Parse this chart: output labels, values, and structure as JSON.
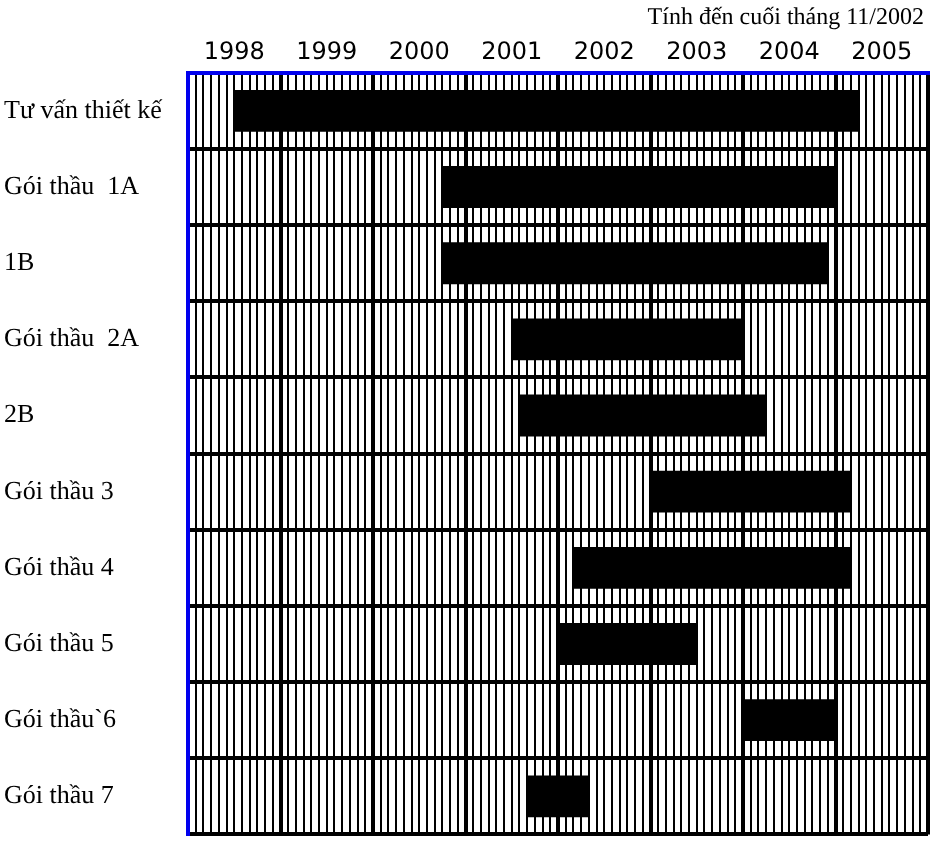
{
  "chart_data": {
    "type": "bar",
    "orientation": "horizontal",
    "annotations": [
      "Tính đến cuối tháng 11/2002"
    ],
    "categories": [
      "Tư vấn thiết kế",
      "Gói thầu  1A",
      "1B",
      "Gói thầu  2A",
      "2B",
      "Gói thầu 3",
      "Gói thầu 4",
      "Gói thầu 5",
      "Gói thầu`6",
      "Gói thầu 7"
    ],
    "base": [
      1998.5,
      2000.75,
      2000.75,
      2001.5,
      2001.58,
      2003,
      2002.17,
      2002,
      2004,
      2001.67
    ],
    "values": [
      6.75,
      4.25,
      4.17,
      2.5,
      2.67,
      2.17,
      3,
      1.5,
      1,
      0.67
    ],
    "color": "#000000",
    "xlim": [
      1998,
      2006
    ],
    "grid": true,
    "legend": false,
    "xticks": [
      {
        "value": 1998,
        "label": null
      },
      {
        "value": 1998.083,
        "label": null
      },
      {
        "value": 1998.167,
        "label": null
      },
      {
        "value": 1998.25,
        "label": null
      },
      {
        "value": 1998.333,
        "label": null
      },
      {
        "value": 1998.417,
        "label": null
      },
      {
        "value": 1998.5,
        "label": "1998"
      },
      {
        "value": 1998.583,
        "label": null
      },
      {
        "value": 1998.667,
        "label": null
      },
      {
        "value": 1998.75,
        "label": null
      },
      {
        "value": 1998.833,
        "label": null
      },
      {
        "value": 1998.917,
        "label": null
      },
      {
        "value": 1999,
        "label": null
      },
      {
        "value": 1999.083,
        "label": null
      },
      {
        "value": 1999.167,
        "label": null
      },
      {
        "value": 1999.25,
        "label": null
      },
      {
        "value": 1999.333,
        "label": null
      },
      {
        "value": 1999.417,
        "label": null
      },
      {
        "value": 1999.5,
        "label": "1999"
      },
      {
        "value": 1999.583,
        "label": null
      },
      {
        "value": 1999.667,
        "label": null
      },
      {
        "value": 1999.75,
        "label": null
      },
      {
        "value": 1999.833,
        "label": null
      },
      {
        "value": 1999.917,
        "label": null
      },
      {
        "value": 2000,
        "label": null
      },
      {
        "value": 2000.083,
        "label": null
      },
      {
        "value": 2000.167,
        "label": null
      },
      {
        "value": 2000.25,
        "label": null
      },
      {
        "value": 2000.333,
        "label": null
      },
      {
        "value": 2000.417,
        "label": null
      },
      {
        "value": 2000.5,
        "label": "2000"
      },
      {
        "value": 2000.583,
        "label": null
      },
      {
        "value": 2000.667,
        "label": null
      },
      {
        "value": 2000.75,
        "label": null
      },
      {
        "value": 2000.833,
        "label": null
      },
      {
        "value": 2000.917,
        "label": null
      },
      {
        "value": 2001,
        "label": null
      },
      {
        "value": 2001.083,
        "label": null
      },
      {
        "value": 2001.167,
        "label": null
      },
      {
        "value": 2001.25,
        "label": null
      },
      {
        "value": 2001.333,
        "label": null
      },
      {
        "value": 2001.417,
        "label": null
      },
      {
        "value": 2001.5,
        "label": "2001"
      },
      {
        "value": 2001.583,
        "label": null
      },
      {
        "value": 2001.667,
        "label": null
      },
      {
        "value": 2001.75,
        "label": null
      },
      {
        "value": 2001.833,
        "label": null
      },
      {
        "value": 2001.917,
        "label": null
      },
      {
        "value": 2002,
        "label": null
      },
      {
        "value": 2002.083,
        "label": null
      },
      {
        "value": 2002.167,
        "label": null
      },
      {
        "value": 2002.25,
        "label": null
      },
      {
        "value": 2002.333,
        "label": null
      },
      {
        "value": 2002.417,
        "label": null
      },
      {
        "value": 2002.5,
        "label": "2002"
      },
      {
        "value": 2002.583,
        "label": null
      },
      {
        "value": 2002.667,
        "label": null
      },
      {
        "value": 2002.75,
        "label": null
      },
      {
        "value": 2002.833,
        "label": null
      },
      {
        "value": 2002.917,
        "label": null
      },
      {
        "value": 2003,
        "label": null
      },
      {
        "value": 2003.083,
        "label": null
      },
      {
        "value": 2003.167,
        "label": null
      },
      {
        "value": 2003.25,
        "label": null
      },
      {
        "value": 2003.333,
        "label": null
      },
      {
        "value": 2003.417,
        "label": null
      },
      {
        "value": 2003.5,
        "label": "2003"
      },
      {
        "value": 2003.583,
        "label": null
      },
      {
        "value": 2003.667,
        "label": null
      },
      {
        "value": 2003.75,
        "label": null
      },
      {
        "value": 2003.833,
        "label": null
      },
      {
        "value": 2003.917,
        "label": null
      },
      {
        "value": 2004,
        "label": null
      },
      {
        "value": 2004.083,
        "label": null
      },
      {
        "value": 2004.167,
        "label": null
      },
      {
        "value": 2004.25,
        "label": null
      },
      {
        "value": 2004.333,
        "label": null
      },
      {
        "value": 2004.417,
        "label": null
      },
      {
        "value": 2004.5,
        "label": "2004"
      },
      {
        "value": 2004.583,
        "label": null
      },
      {
        "value": 2004.667,
        "label": null
      },
      {
        "value": 2004.75,
        "label": null
      },
      {
        "value": 2004.833,
        "label": null
      },
      {
        "value": 2004.917,
        "label": null
      },
      {
        "value": 2005,
        "label": null
      },
      {
        "value": 2005.083,
        "label": null
      },
      {
        "value": 2005.167,
        "label": null
      },
      {
        "value": 2005.25,
        "label": null
      },
      {
        "value": 2005.333,
        "label": null
      },
      {
        "value": 2005.417,
        "label": null
      },
      {
        "value": 2005.5,
        "label": "2005"
      },
      {
        "value": 2005.583,
        "label": null
      },
      {
        "value": 2005.667,
        "label": null
      },
      {
        "value": 2005.75,
        "label": null
      },
      {
        "value": 2005.833,
        "label": null
      },
      {
        "value": 2005.917,
        "label": null
      },
      {
        "value": 2006,
        "label": null
      }
    ]
  }
}
